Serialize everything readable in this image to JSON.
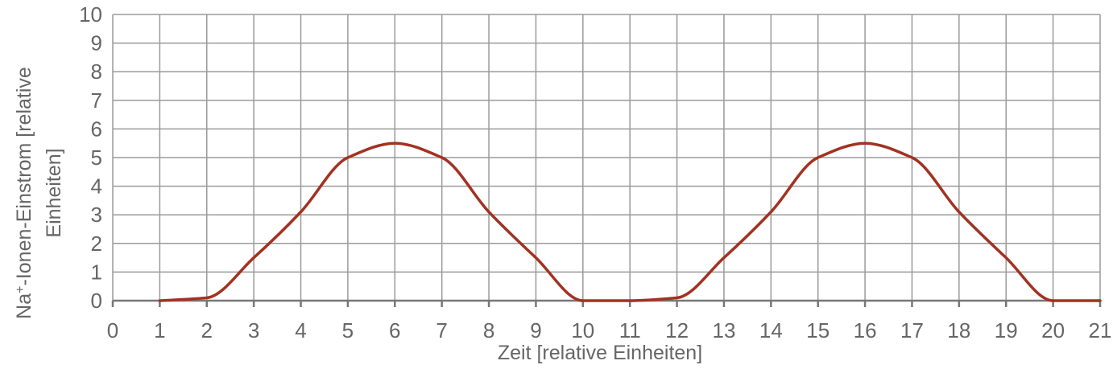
{
  "chart_data": {
    "type": "line",
    "title": "",
    "xlabel": "Zeit [relative Einheiten]",
    "ylabel_parts": {
      "line1_pre": "Na",
      "line1_sup": "+",
      "line1_post": "-Ionen-Einstrom [relative",
      "line2": "Einheiten]"
    },
    "xlim": [
      0,
      21
    ],
    "ylim": [
      0,
      10
    ],
    "x_ticks": [
      0,
      1,
      2,
      3,
      4,
      5,
      6,
      7,
      8,
      9,
      10,
      11,
      12,
      13,
      14,
      15,
      16,
      17,
      18,
      19,
      20,
      21
    ],
    "y_ticks": [
      0,
      1,
      2,
      3,
      4,
      5,
      6,
      7,
      8,
      9,
      10
    ],
    "grid": true,
    "legend": "none",
    "series": [
      {
        "color": "#a23222",
        "x": [
          1,
          2,
          3,
          4,
          5,
          6,
          7,
          8,
          9,
          10,
          11,
          12,
          13,
          14,
          15,
          16,
          17,
          18,
          19,
          20,
          21
        ],
        "y": [
          0,
          0.1,
          1.5,
          3.1,
          5,
          5.5,
          5,
          3.1,
          1.5,
          0,
          0,
          0.1,
          1.5,
          3.1,
          5,
          5.5,
          5,
          3.1,
          1.5,
          0,
          0
        ]
      }
    ]
  }
}
